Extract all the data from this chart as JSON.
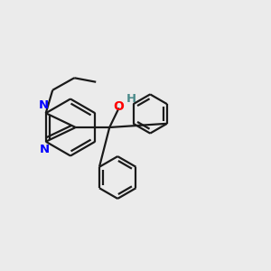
{
  "background_color": "#ebebeb",
  "bond_color": "#1a1a1a",
  "nitrogen_color": "#0000ff",
  "oxygen_color": "#ff0000",
  "hydrogen_color": "#4a8a8a",
  "line_width": 1.6,
  "figsize": [
    3.0,
    3.0
  ],
  "dpi": 100,
  "xlim": [
    0,
    10
  ],
  "ylim": [
    0,
    10
  ]
}
